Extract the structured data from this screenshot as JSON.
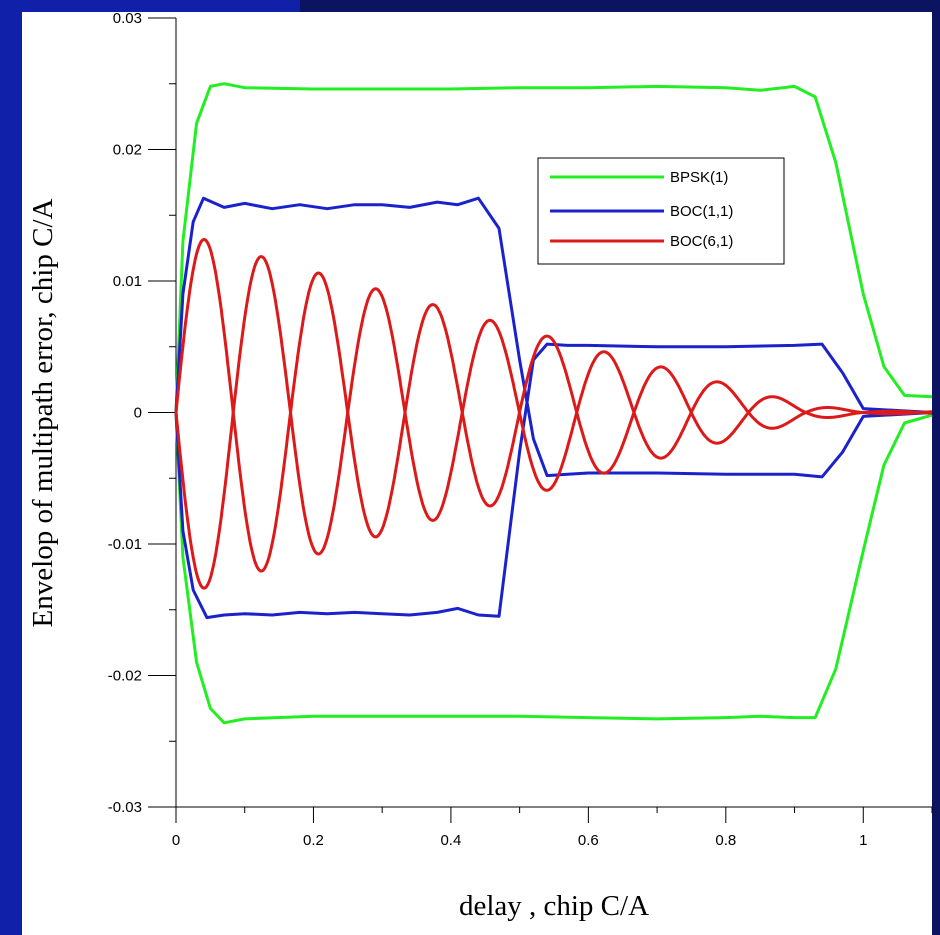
{
  "chart_data": {
    "type": "line",
    "title": "",
    "xlabel": "delay , chip C/A",
    "ylabel": "Envelop of multipath error,  chip C/A",
    "xlim": [
      0,
      1.1
    ],
    "ylim": [
      -0.03,
      0.03
    ],
    "x_ticks": [
      "0",
      "0.2",
      "0.4",
      "0.6",
      "0.8",
      "1"
    ],
    "x_tick_values": [
      0,
      0.2,
      0.4,
      0.6,
      0.8,
      1
    ],
    "y_ticks": [
      "0.03",
      "0.02",
      "0.01",
      "0",
      "-0.01",
      "-0.02",
      "-0.03"
    ],
    "y_tick_values": [
      0.03,
      0.02,
      0.01,
      0,
      -0.01,
      -0.02,
      -0.03
    ],
    "grid": false,
    "legend_position": "top-right",
    "colors": {
      "frame_blue": "#1020a8",
      "frame_dark": "#0a1460",
      "bpsk": "#22ee22",
      "boc11": "#1a22cc",
      "boc61": "#dd1a1a"
    },
    "series": [
      {
        "name": "BPSK(1)",
        "color": "#22ee22",
        "upper": [
          [
            0,
            0
          ],
          [
            0.01,
            0.013
          ],
          [
            0.03,
            0.022
          ],
          [
            0.05,
            0.0248
          ],
          [
            0.07,
            0.025
          ],
          [
            0.1,
            0.0247
          ],
          [
            0.2,
            0.0246
          ],
          [
            0.3,
            0.0246
          ],
          [
            0.4,
            0.0246
          ],
          [
            0.5,
            0.0247
          ],
          [
            0.6,
            0.0247
          ],
          [
            0.7,
            0.0248
          ],
          [
            0.8,
            0.0247
          ],
          [
            0.85,
            0.0245
          ],
          [
            0.9,
            0.0248
          ],
          [
            0.93,
            0.024
          ],
          [
            0.96,
            0.019
          ],
          [
            1.0,
            0.009
          ],
          [
            1.03,
            0.0035
          ],
          [
            1.06,
            0.0013
          ],
          [
            1.1,
            0.0012
          ]
        ],
        "lower": [
          [
            0,
            0
          ],
          [
            0.01,
            -0.011
          ],
          [
            0.03,
            -0.019
          ],
          [
            0.05,
            -0.0225
          ],
          [
            0.07,
            -0.0236
          ],
          [
            0.1,
            -0.0233
          ],
          [
            0.2,
            -0.0231
          ],
          [
            0.3,
            -0.0231
          ],
          [
            0.4,
            -0.0231
          ],
          [
            0.5,
            -0.0231
          ],
          [
            0.6,
            -0.0232
          ],
          [
            0.7,
            -0.0233
          ],
          [
            0.8,
            -0.0232
          ],
          [
            0.85,
            -0.0231
          ],
          [
            0.9,
            -0.0232
          ],
          [
            0.93,
            -0.0232
          ],
          [
            0.96,
            -0.0195
          ],
          [
            1.0,
            -0.0105
          ],
          [
            1.03,
            -0.004
          ],
          [
            1.06,
            -0.0008
          ],
          [
            1.1,
            -0.0002
          ]
        ]
      },
      {
        "name": "BOC(1,1)",
        "color": "#1a22cc",
        "upper": [
          [
            0,
            0
          ],
          [
            0.01,
            0.009
          ],
          [
            0.025,
            0.0145
          ],
          [
            0.04,
            0.0163
          ],
          [
            0.07,
            0.0156
          ],
          [
            0.1,
            0.0159
          ],
          [
            0.14,
            0.0155
          ],
          [
            0.18,
            0.0158
          ],
          [
            0.22,
            0.0155
          ],
          [
            0.26,
            0.0158
          ],
          [
            0.3,
            0.0158
          ],
          [
            0.34,
            0.0156
          ],
          [
            0.38,
            0.016
          ],
          [
            0.41,
            0.0158
          ],
          [
            0.44,
            0.0163
          ],
          [
            0.47,
            0.014
          ],
          [
            0.5,
            0.004
          ],
          [
            0.52,
            -0.002
          ],
          [
            0.54,
            -0.0048
          ],
          [
            0.57,
            -0.0047
          ],
          [
            0.6,
            -0.0046
          ],
          [
            0.7,
            -0.0046
          ],
          [
            0.8,
            -0.0047
          ],
          [
            0.9,
            -0.0047
          ],
          [
            0.94,
            -0.0049
          ],
          [
            0.97,
            -0.003
          ],
          [
            1.0,
            -0.0003
          ],
          [
            1.1,
            0
          ]
        ],
        "lower": [
          [
            0,
            0
          ],
          [
            0.01,
            -0.009
          ],
          [
            0.025,
            -0.0135
          ],
          [
            0.045,
            -0.0156
          ],
          [
            0.07,
            -0.0154
          ],
          [
            0.1,
            -0.0153
          ],
          [
            0.14,
            -0.0154
          ],
          [
            0.18,
            -0.0152
          ],
          [
            0.22,
            -0.0153
          ],
          [
            0.26,
            -0.0152
          ],
          [
            0.3,
            -0.0153
          ],
          [
            0.34,
            -0.0154
          ],
          [
            0.38,
            -0.0152
          ],
          [
            0.41,
            -0.0149
          ],
          [
            0.44,
            -0.0154
          ],
          [
            0.47,
            -0.0155
          ],
          [
            0.5,
            -0.003
          ],
          [
            0.52,
            0.004
          ],
          [
            0.54,
            0.0052
          ],
          [
            0.57,
            0.0051
          ],
          [
            0.6,
            0.0051
          ],
          [
            0.7,
            0.005
          ],
          [
            0.8,
            0.005
          ],
          [
            0.9,
            0.0051
          ],
          [
            0.94,
            0.0052
          ],
          [
            0.97,
            0.003
          ],
          [
            1.0,
            0.0003
          ],
          [
            1.1,
            0
          ]
        ],
        "note": ""
      },
      {
        "name": "BOC(6,1)",
        "color": "#dd1a1a",
        "period": 0.0833,
        "peaks": [
          0.0138,
          0.0125,
          0.0112,
          0.01,
          0.0088,
          0.0076,
          0.0064,
          0.0052,
          0.004,
          0.0029,
          0.0017,
          0.0006,
          0.0001
        ],
        "troughs": [
          0.014,
          0.0127,
          0.0114,
          0.0101,
          0.0088,
          0.0076,
          0.0066,
          0.0052,
          0.004,
          0.0029,
          0.0017,
          0.0006,
          0.0001
        ]
      }
    ]
  }
}
